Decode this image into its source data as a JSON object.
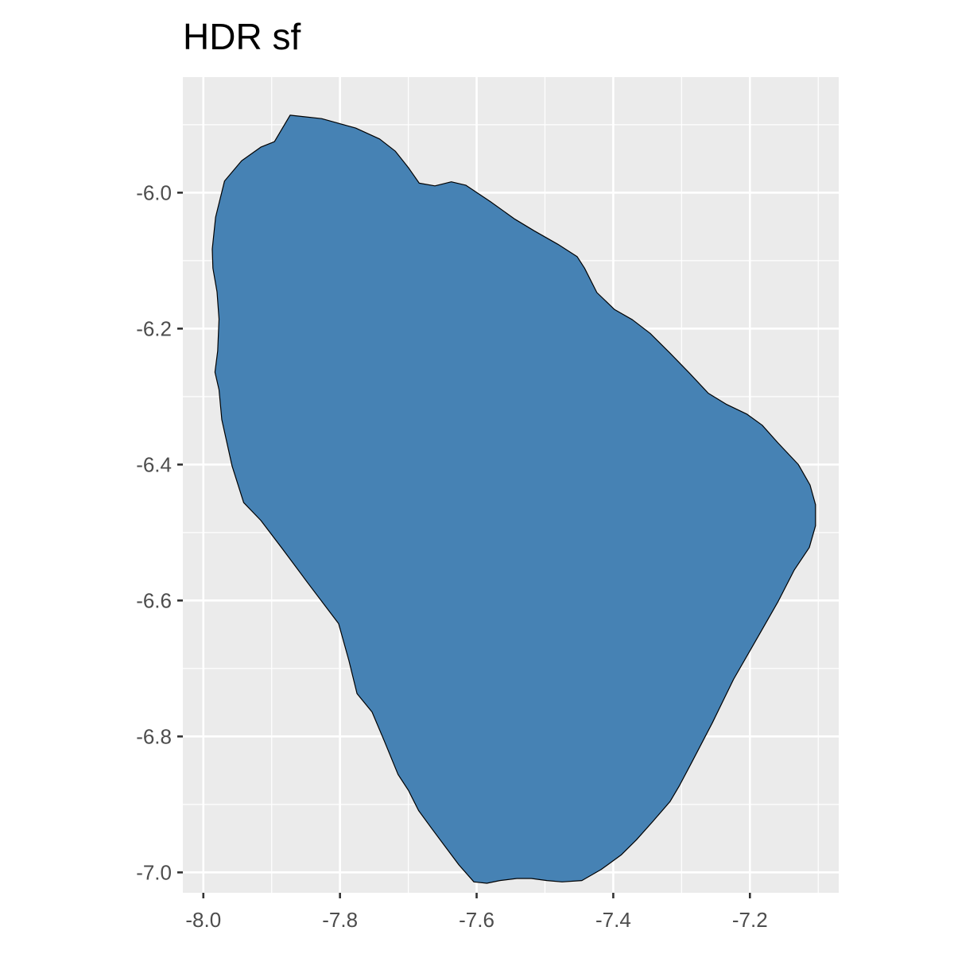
{
  "chart_data": {
    "type": "area",
    "title": "HDR sf",
    "xlabel": "",
    "ylabel": "",
    "xlim": [
      -8.03,
      -7.07
    ],
    "ylim": [
      -7.03,
      -5.83
    ],
    "x_ticks": [
      -8.0,
      -7.8,
      -7.6,
      -7.4,
      -7.2
    ],
    "x_tick_labels": [
      "-8.0",
      "-7.8",
      "-7.6",
      "-7.4",
      "-7.2"
    ],
    "y_ticks": [
      -6.0,
      -6.2,
      -6.4,
      -6.6,
      -6.8,
      -7.0
    ],
    "y_tick_labels": [
      "-6.0",
      "-6.2",
      "-6.4",
      "-6.6",
      "-6.8",
      "-7.0"
    ],
    "grid": true,
    "fill_color": "#4682b4",
    "stroke_color": "#000000",
    "panel_color": "#ebebeb",
    "grid_color": "#ffffff",
    "region": {
      "x": [
        -7.873,
        -7.827,
        -7.777,
        -7.742,
        -7.719,
        -7.7,
        -7.684,
        -7.661,
        -7.637,
        -7.616,
        -7.58,
        -7.544,
        -7.516,
        -7.481,
        -7.453,
        -7.442,
        -7.424,
        -7.398,
        -7.372,
        -7.346,
        -7.317,
        -7.288,
        -7.261,
        -7.235,
        -7.204,
        -7.182,
        -7.159,
        -7.129,
        -7.112,
        -7.104,
        -7.104,
        -7.113,
        -7.135,
        -7.159,
        -7.188,
        -7.224,
        -7.255,
        -7.285,
        -7.303,
        -7.317,
        -7.343,
        -7.366,
        -7.388,
        -7.418,
        -7.446,
        -7.475,
        -7.497,
        -7.52,
        -7.541,
        -7.566,
        -7.585,
        -7.604,
        -7.626,
        -7.646,
        -7.666,
        -7.685,
        -7.7,
        -7.715,
        -7.735,
        -7.753,
        -7.775,
        -7.787,
        -7.802,
        -7.845,
        -7.885,
        -7.916,
        -7.941,
        -7.958,
        -7.973,
        -7.977,
        -7.983,
        -7.979,
        -7.977,
        -7.98,
        -7.986,
        -7.987,
        -7.982,
        -7.969,
        -7.944,
        -7.916,
        -7.896
      ],
      "y": [
        -5.886,
        -5.891,
        -5.905,
        -5.921,
        -5.939,
        -5.963,
        -5.986,
        -5.99,
        -5.984,
        -5.989,
        -6.013,
        -6.039,
        -6.056,
        -6.076,
        -6.094,
        -6.111,
        -6.147,
        -6.172,
        -6.187,
        -6.207,
        -6.236,
        -6.266,
        -6.295,
        -6.311,
        -6.326,
        -6.342,
        -6.368,
        -6.4,
        -6.43,
        -6.459,
        -6.49,
        -6.522,
        -6.555,
        -6.602,
        -6.653,
        -6.716,
        -6.78,
        -6.838,
        -6.872,
        -6.896,
        -6.926,
        -6.952,
        -6.974,
        -6.996,
        -7.012,
        -7.014,
        -7.012,
        -7.009,
        -7.009,
        -7.012,
        -7.016,
        -7.014,
        -6.989,
        -6.962,
        -6.935,
        -6.909,
        -6.879,
        -6.856,
        -6.807,
        -6.764,
        -6.737,
        -6.688,
        -6.634,
        -6.577,
        -6.523,
        -6.482,
        -6.456,
        -6.402,
        -6.334,
        -6.29,
        -6.264,
        -6.233,
        -6.186,
        -6.146,
        -6.111,
        -6.083,
        -6.036,
        -5.983,
        -5.953,
        -5.933,
        -5.925
      ]
    }
  }
}
